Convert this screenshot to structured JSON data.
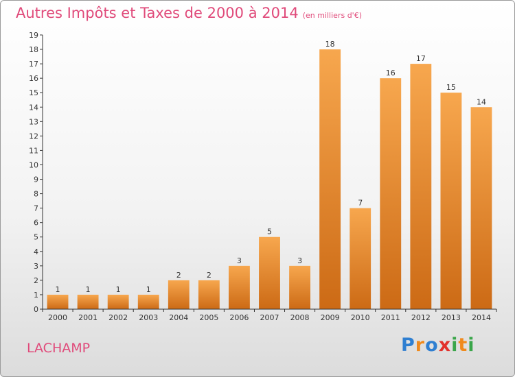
{
  "header": {
    "title": "Autres Impôts et Taxes de 2000 à 2014",
    "subtitle": "(en milliers d'€)"
  },
  "commune": "LACHAMP",
  "logo": {
    "text": "Proxiti",
    "letters": [
      {
        "ch": "P",
        "color": "#2f7fd1"
      },
      {
        "ch": "r",
        "color": "#f08a1c"
      },
      {
        "ch": "o",
        "color": "#2f7fd1"
      },
      {
        "ch": "x",
        "color": "#e2312b"
      },
      {
        "ch": "i",
        "color": "#3aa64a"
      },
      {
        "ch": "t",
        "color": "#f08a1c"
      },
      {
        "ch": "i",
        "color": "#3aa64a"
      }
    ]
  },
  "colors": {
    "accent": "#e04a7a",
    "bar_light": "#f7a74e",
    "bar_dark": "#cc6a15"
  },
  "chart_data": {
    "type": "bar",
    "title": "Autres Impôts et Taxes de 2000 à 2014",
    "subtitle": "(en milliers d'€)",
    "categories": [
      "2000",
      "2001",
      "2002",
      "2003",
      "2004",
      "2005",
      "2006",
      "2007",
      "2008",
      "2009",
      "2010",
      "2011",
      "2012",
      "2013",
      "2014"
    ],
    "values": [
      1,
      1,
      1,
      1,
      2,
      2,
      3,
      5,
      3,
      18,
      7,
      16,
      17,
      15,
      14
    ],
    "ylim": [
      0,
      19
    ],
    "yticks": [
      0,
      1,
      2,
      3,
      4,
      5,
      6,
      7,
      8,
      9,
      10,
      11,
      12,
      13,
      14,
      15,
      16,
      17,
      18,
      19
    ],
    "grid": false,
    "data_labels": true
  }
}
